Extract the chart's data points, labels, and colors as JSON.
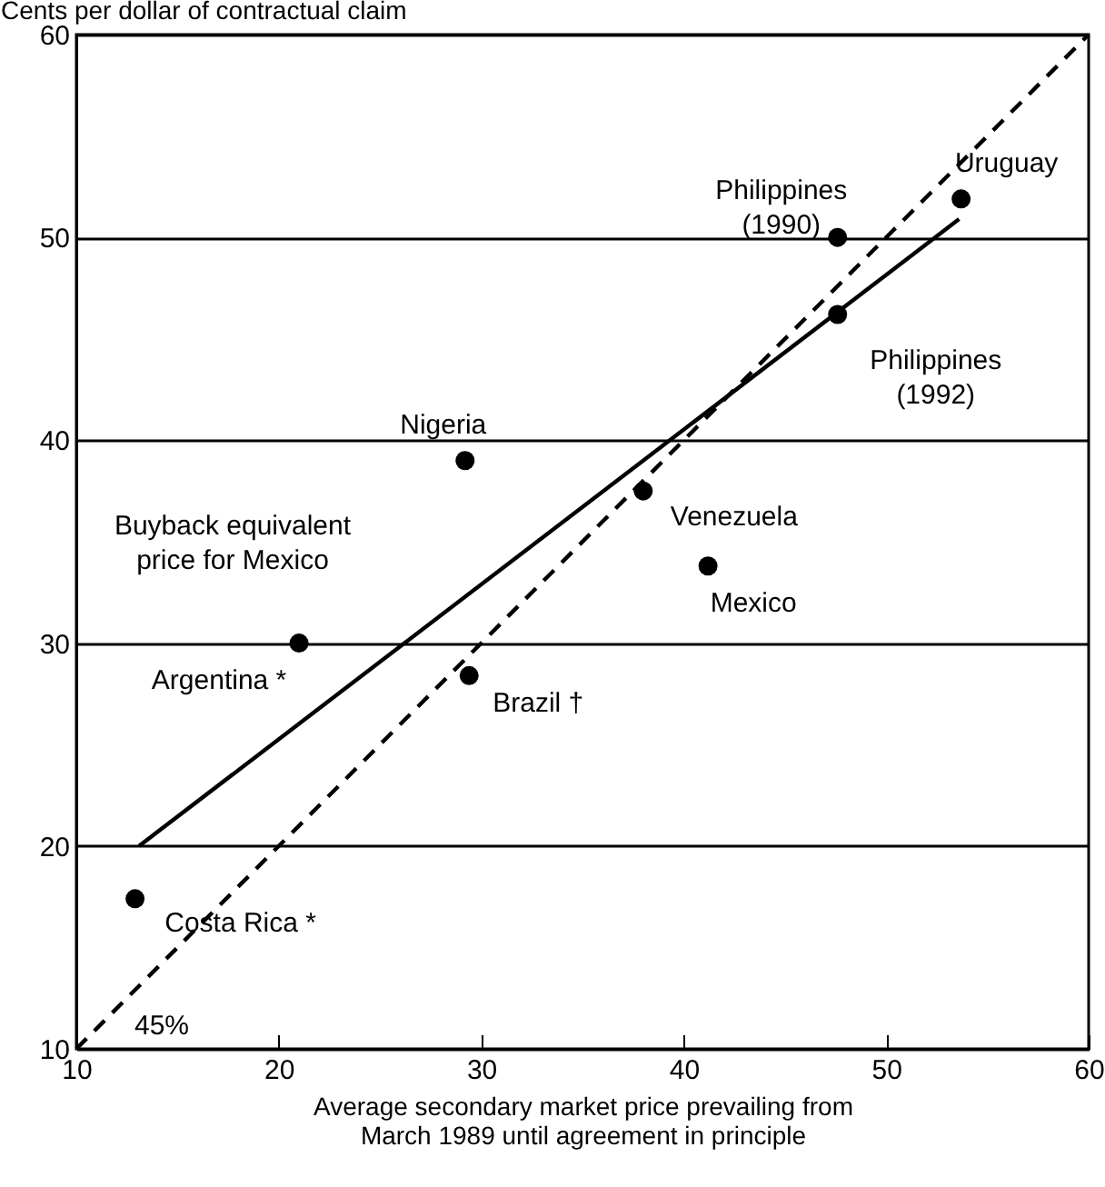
{
  "chart_data": {
    "type": "scatter",
    "xlabel": "Average secondary market price prevailing from\nMarch 1989 until agreement in principle",
    "ylabel": "Cents per dollar of contractual claim",
    "xlim": [
      10,
      60
    ],
    "ylim": [
      10,
      60
    ],
    "xticks": [
      10,
      20,
      30,
      40,
      50,
      60
    ],
    "yticks": [
      10,
      20,
      30,
      40,
      50,
      60
    ],
    "grid": "y",
    "series": [
      {
        "color": "#000000",
        "marker": "circle",
        "x": [
          53.7,
          47.6,
          47.6,
          29.2,
          38.0,
          41.2,
          21.0,
          29.4,
          12.9
        ],
        "values": [
          51.9,
          50.0,
          46.2,
          39.0,
          37.5,
          33.8,
          30.0,
          28.4,
          17.4
        ]
      },
      {
        "type": "line",
        "color": "#000000",
        "line_style": "solid",
        "marker": "none",
        "x": [
          13.1,
          53.6
        ],
        "values": [
          20.0,
          50.9
        ]
      },
      {
        "type": "line",
        "color": "#000000",
        "line_style": "dashed",
        "marker": "none",
        "x": [
          10,
          60
        ],
        "values": [
          10,
          60
        ]
      }
    ],
    "annotations": [
      {
        "text": "Uruguay",
        "x": 53.7,
        "y": 51.9
      },
      {
        "text": "Philippines\n(1990)",
        "x": 47.6,
        "y": 50.0
      },
      {
        "text": "Philippines\n(1992)",
        "x": 47.6,
        "y": 46.2
      },
      {
        "text": "Nigeria",
        "x": 29.2,
        "y": 39.0
      },
      "Buyback equivalent\nprice for Mexico",
      {
        "text": "Venezuela",
        "x": 38.0,
        "y": 37.5
      },
      {
        "text": "Mexico",
        "x": 41.2,
        "y": 33.8
      },
      {
        "text": "Argentina *",
        "x": 21.0,
        "y": 30.0
      },
      {
        "text": "Brazil †",
        "x": 29.4,
        "y": 28.4
      },
      {
        "text": "Costa Rica *",
        "x": 12.9,
        "y": 17.4
      },
      "45%"
    ]
  }
}
